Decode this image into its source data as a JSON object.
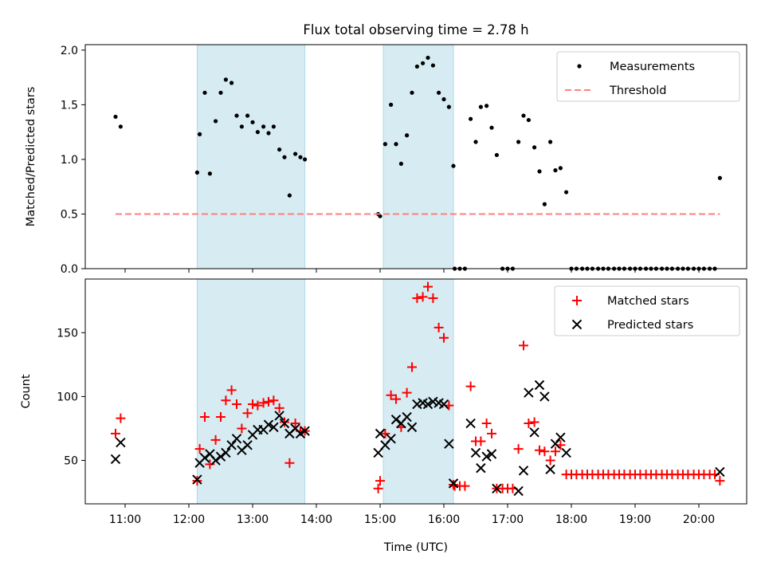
{
  "title": "Flux total observing time = 2.78 h",
  "chart_data": [
    {
      "type": "scatter",
      "panel": "top",
      "ylabel": "Matched/Predicted stars",
      "xlabel": "",
      "x_unit": "hours (UTC)",
      "xlim": [
        10.375,
        20.75
      ],
      "ylim": [
        0,
        2.05
      ],
      "yticks": [
        0.0,
        0.5,
        1.0,
        1.5,
        2.0
      ],
      "ytick_labels": [
        "0.0",
        "0.5",
        "1.0",
        "1.5",
        "2.0"
      ],
      "shaded_intervals": [
        [
          12.13,
          13.82
        ],
        [
          15.05,
          16.15
        ]
      ],
      "legend": {
        "position": "top-right",
        "entries": [
          "Measurements",
          "Threshold"
        ]
      },
      "series": [
        {
          "name": "Measurements",
          "style": "dot",
          "color": "#000000",
          "points": [
            [
              10.85,
              1.39
            ],
            [
              10.93,
              1.3
            ],
            [
              12.13,
              0.88
            ],
            [
              12.17,
              1.23
            ],
            [
              12.25,
              1.61
            ],
            [
              12.33,
              0.87
            ],
            [
              12.42,
              1.35
            ],
            [
              12.5,
              1.61
            ],
            [
              12.58,
              1.73
            ],
            [
              12.67,
              1.7
            ],
            [
              12.75,
              1.4
            ],
            [
              12.83,
              1.3
            ],
            [
              12.92,
              1.4
            ],
            [
              13.0,
              1.34
            ],
            [
              13.08,
              1.25
            ],
            [
              13.17,
              1.3
            ],
            [
              13.25,
              1.24
            ],
            [
              13.33,
              1.3
            ],
            [
              13.42,
              1.09
            ],
            [
              13.5,
              1.02
            ],
            [
              13.58,
              0.67
            ],
            [
              13.67,
              1.05
            ],
            [
              13.75,
              1.02
            ],
            [
              13.82,
              1.0
            ],
            [
              14.97,
              0.5
            ],
            [
              15.0,
              0.48
            ],
            [
              15.08,
              1.14
            ],
            [
              15.17,
              1.5
            ],
            [
              15.25,
              1.14
            ],
            [
              15.33,
              0.96
            ],
            [
              15.42,
              1.22
            ],
            [
              15.5,
              1.61
            ],
            [
              15.58,
              1.85
            ],
            [
              15.67,
              1.88
            ],
            [
              15.75,
              1.93
            ],
            [
              15.83,
              1.86
            ],
            [
              15.92,
              1.61
            ],
            [
              16.0,
              1.55
            ],
            [
              16.08,
              1.48
            ],
            [
              16.15,
              0.94
            ],
            [
              16.42,
              1.37
            ],
            [
              16.5,
              1.16
            ],
            [
              16.58,
              1.48
            ],
            [
              16.67,
              1.49
            ],
            [
              16.75,
              1.29
            ],
            [
              16.83,
              1.04
            ],
            [
              17.17,
              1.16
            ],
            [
              17.25,
              1.4
            ],
            [
              17.33,
              1.36
            ],
            [
              17.42,
              1.11
            ],
            [
              17.5,
              0.89
            ],
            [
              17.58,
              0.59
            ],
            [
              17.67,
              1.16
            ],
            [
              17.75,
              0.9
            ],
            [
              17.83,
              0.92
            ],
            [
              17.92,
              0.7
            ],
            [
              20.33,
              0.83
            ],
            [
              16.17,
              0
            ],
            [
              16.25,
              0
            ],
            [
              16.33,
              0
            ],
            [
              16.92,
              0
            ],
            [
              17.0,
              0
            ],
            [
              17.08,
              0
            ],
            [
              18.0,
              0
            ],
            [
              18.08,
              0
            ],
            [
              18.17,
              0
            ],
            [
              18.25,
              0
            ],
            [
              18.33,
              0
            ],
            [
              18.42,
              0
            ],
            [
              18.5,
              0
            ],
            [
              18.58,
              0
            ],
            [
              18.67,
              0
            ],
            [
              18.75,
              0
            ],
            [
              18.83,
              0
            ],
            [
              18.92,
              0
            ],
            [
              19.0,
              0
            ],
            [
              19.08,
              0
            ],
            [
              19.17,
              0
            ],
            [
              19.25,
              0
            ],
            [
              19.33,
              0
            ],
            [
              19.42,
              0
            ],
            [
              19.5,
              0
            ],
            [
              19.58,
              0
            ],
            [
              19.67,
              0
            ],
            [
              19.75,
              0
            ],
            [
              19.83,
              0
            ],
            [
              19.92,
              0
            ],
            [
              20.0,
              0
            ],
            [
              20.08,
              0
            ],
            [
              20.17,
              0
            ],
            [
              20.25,
              0
            ]
          ]
        },
        {
          "name": "Threshold",
          "style": "dashed-line",
          "color": "#ff7f7f",
          "points": [
            [
              10.85,
              0.5
            ],
            [
              20.33,
              0.5
            ]
          ]
        }
      ]
    },
    {
      "type": "scatter",
      "panel": "bottom",
      "xlabel": "Time (UTC)",
      "ylabel": "Count",
      "x_unit": "hours (UTC)",
      "xlim": [
        10.375,
        20.75
      ],
      "ylim": [
        16,
        192
      ],
      "xticks": [
        11,
        12,
        13,
        14,
        15,
        16,
        17,
        18,
        19,
        20
      ],
      "xtick_labels": [
        "11:00",
        "12:00",
        "13:00",
        "14:00",
        "15:00",
        "16:00",
        "17:00",
        "18:00",
        "19:00",
        "20:00"
      ],
      "yticks": [
        50,
        100,
        150
      ],
      "ytick_labels": [
        "50",
        "100",
        "150"
      ],
      "shaded_intervals": [
        [
          12.13,
          13.82
        ],
        [
          15.05,
          16.15
        ]
      ],
      "legend": {
        "position": "top-right",
        "entries": [
          "Matched stars",
          "Predicted stars"
        ]
      },
      "series": [
        {
          "name": "Matched stars",
          "marker": "+",
          "color": "#ff0000",
          "points": [
            [
              10.85,
              71
            ],
            [
              10.93,
              83
            ],
            [
              12.13,
              34
            ],
            [
              12.17,
              59
            ],
            [
              12.25,
              84
            ],
            [
              12.33,
              47
            ],
            [
              12.42,
              66
            ],
            [
              12.5,
              84
            ],
            [
              12.58,
              97
            ],
            [
              12.67,
              105
            ],
            [
              12.75,
              94
            ],
            [
              12.83,
              75
            ],
            [
              12.92,
              87
            ],
            [
              13.0,
              94
            ],
            [
              13.08,
              93
            ],
            [
              13.17,
              95
            ],
            [
              13.25,
              96
            ],
            [
              13.33,
              97
            ],
            [
              13.42,
              91
            ],
            [
              13.5,
              80
            ],
            [
              13.58,
              48
            ],
            [
              13.67,
              79
            ],
            [
              13.75,
              73
            ],
            [
              13.82,
              73
            ],
            [
              14.97,
              28
            ],
            [
              15.0,
              34
            ],
            [
              15.08,
              71
            ],
            [
              15.17,
              101
            ],
            [
              15.25,
              98
            ],
            [
              15.33,
              76
            ],
            [
              15.42,
              103
            ],
            [
              15.5,
              123
            ],
            [
              15.58,
              177
            ],
            [
              15.67,
              178
            ],
            [
              15.75,
              186
            ],
            [
              15.83,
              177
            ],
            [
              15.92,
              154
            ],
            [
              16.0,
              146
            ],
            [
              16.08,
              93
            ],
            [
              16.15,
              31
            ],
            [
              16.17,
              30
            ],
            [
              16.25,
              30
            ],
            [
              16.33,
              30
            ],
            [
              16.42,
              108
            ],
            [
              16.5,
              65
            ],
            [
              16.58,
              65
            ],
            [
              16.67,
              79
            ],
            [
              16.75,
              71
            ],
            [
              16.83,
              28
            ],
            [
              16.92,
              28
            ],
            [
              17.0,
              28
            ],
            [
              17.08,
              28
            ],
            [
              17.17,
              59
            ],
            [
              17.25,
              140
            ],
            [
              17.33,
              79
            ],
            [
              17.42,
              80
            ],
            [
              17.5,
              58
            ],
            [
              17.58,
              57
            ],
            [
              17.67,
              50
            ],
            [
              17.75,
              57
            ],
            [
              17.83,
              62
            ],
            [
              17.92,
              39
            ],
            [
              18.0,
              39
            ],
            [
              18.08,
              39
            ],
            [
              18.17,
              39
            ],
            [
              18.25,
              39
            ],
            [
              18.33,
              39
            ],
            [
              18.42,
              39
            ],
            [
              18.5,
              39
            ],
            [
              18.58,
              39
            ],
            [
              18.67,
              39
            ],
            [
              18.75,
              39
            ],
            [
              18.83,
              39
            ],
            [
              18.92,
              39
            ],
            [
              19.0,
              39
            ],
            [
              19.08,
              39
            ],
            [
              19.17,
              39
            ],
            [
              19.25,
              39
            ],
            [
              19.33,
              39
            ],
            [
              19.42,
              39
            ],
            [
              19.5,
              39
            ],
            [
              19.58,
              39
            ],
            [
              19.67,
              39
            ],
            [
              19.75,
              39
            ],
            [
              19.83,
              39
            ],
            [
              19.92,
              39
            ],
            [
              20.0,
              39
            ],
            [
              20.08,
              39
            ],
            [
              20.17,
              39
            ],
            [
              20.25,
              39
            ],
            [
              20.33,
              34
            ]
          ]
        },
        {
          "name": "Predicted stars",
          "marker": "x",
          "color": "#000000",
          "points": [
            [
              10.85,
              51
            ],
            [
              10.93,
              64
            ],
            [
              12.13,
              35
            ],
            [
              12.17,
              48
            ],
            [
              12.25,
              52
            ],
            [
              12.33,
              55
            ],
            [
              12.42,
              50
            ],
            [
              12.5,
              53
            ],
            [
              12.58,
              56
            ],
            [
              12.67,
              62
            ],
            [
              12.75,
              67
            ],
            [
              12.83,
              58
            ],
            [
              12.92,
              62
            ],
            [
              13.0,
              70
            ],
            [
              13.08,
              74
            ],
            [
              13.17,
              74
            ],
            [
              13.25,
              78
            ],
            [
              13.33,
              76
            ],
            [
              13.42,
              85
            ],
            [
              13.5,
              79
            ],
            [
              13.58,
              71
            ],
            [
              13.67,
              75
            ],
            [
              13.75,
              71
            ],
            [
              13.82,
              73
            ],
            [
              14.97,
              56
            ],
            [
              15.0,
              71
            ],
            [
              15.08,
              62
            ],
            [
              15.17,
              67
            ],
            [
              15.25,
              82
            ],
            [
              15.33,
              79
            ],
            [
              15.42,
              84
            ],
            [
              15.5,
              76
            ],
            [
              15.58,
              94
            ],
            [
              15.67,
              95
            ],
            [
              15.75,
              94
            ],
            [
              15.83,
              96
            ],
            [
              15.92,
              95
            ],
            [
              16.0,
              94
            ],
            [
              16.08,
              63
            ],
            [
              16.15,
              32
            ],
            [
              16.42,
              79
            ],
            [
              16.5,
              56
            ],
            [
              16.58,
              44
            ],
            [
              16.67,
              53
            ],
            [
              16.75,
              55
            ],
            [
              16.83,
              28
            ],
            [
              17.17,
              26
            ],
            [
              17.25,
              42
            ],
            [
              17.33,
              103
            ],
            [
              17.42,
              72
            ],
            [
              17.5,
              109
            ],
            [
              17.58,
              100
            ],
            [
              17.67,
              43
            ],
            [
              17.75,
              63
            ],
            [
              17.83,
              68
            ],
            [
              17.92,
              56
            ],
            [
              20.33,
              41
            ]
          ]
        }
      ]
    }
  ]
}
